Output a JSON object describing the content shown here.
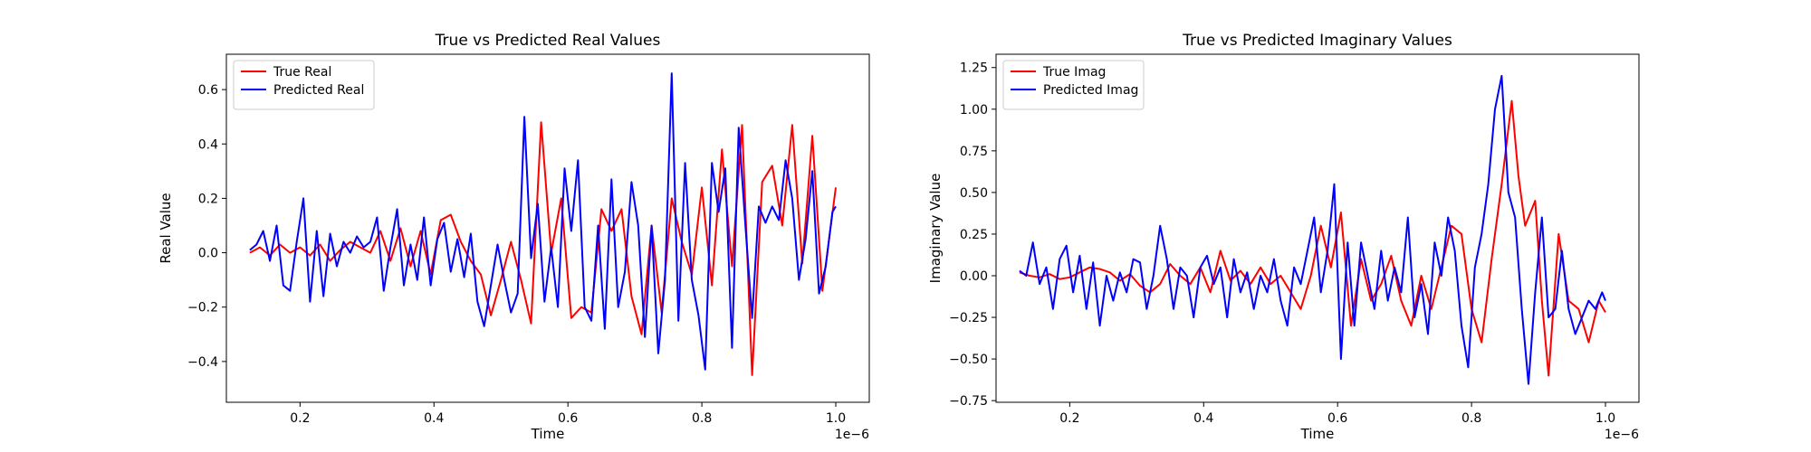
{
  "figure": {
    "background": "#ffffff"
  },
  "chart_data": [
    {
      "type": "line",
      "title": "True vs Predicted Real Values",
      "xlabel": "Time",
      "ylabel": "Real Value",
      "x_offset_label": "1e−6",
      "xlim": [
        0.09,
        1.05
      ],
      "ylim": [
        -0.55,
        0.73
      ],
      "grid": false,
      "legend_position": "top-left",
      "xticks": [
        0.2,
        0.4,
        0.6,
        0.8,
        1.0
      ],
      "xtick_labels": [
        "0.2",
        "0.4",
        "0.6",
        "0.8",
        "1.0"
      ],
      "yticks": [
        -0.4,
        -0.2,
        0.0,
        0.2,
        0.4,
        0.6
      ],
      "ytick_labels": [
        "−0.4",
        "−0.2",
        "0.0",
        "0.2",
        "0.4",
        "0.6"
      ],
      "series": [
        {
          "name": "True Real",
          "color": "#ff0000",
          "x": [
            0.125,
            0.14,
            0.155,
            0.17,
            0.185,
            0.2,
            0.215,
            0.23,
            0.245,
            0.26,
            0.275,
            0.29,
            0.305,
            0.32,
            0.335,
            0.35,
            0.365,
            0.38,
            0.395,
            0.41,
            0.425,
            0.44,
            0.455,
            0.47,
            0.485,
            0.5,
            0.515,
            0.53,
            0.545,
            0.56,
            0.575,
            0.59,
            0.605,
            0.62,
            0.635,
            0.65,
            0.665,
            0.68,
            0.695,
            0.71,
            0.725,
            0.74,
            0.755,
            0.77,
            0.785,
            0.8,
            0.815,
            0.83,
            0.845,
            0.86,
            0.875,
            0.89,
            0.905,
            0.92,
            0.935,
            0.95,
            0.965,
            0.98,
            1.0
          ],
          "y": [
            0.0,
            0.02,
            -0.01,
            0.03,
            0.0,
            0.02,
            -0.01,
            0.03,
            -0.03,
            0.01,
            0.04,
            0.02,
            0.0,
            0.08,
            -0.03,
            0.09,
            -0.05,
            0.08,
            -0.08,
            0.12,
            0.14,
            0.04,
            -0.03,
            -0.08,
            -0.23,
            -0.1,
            0.04,
            -0.1,
            -0.26,
            0.48,
            0.0,
            0.2,
            -0.24,
            -0.2,
            -0.22,
            0.16,
            0.08,
            0.16,
            -0.16,
            -0.3,
            0.1,
            -0.22,
            0.2,
            0.04,
            -0.08,
            0.24,
            -0.12,
            0.38,
            -0.05,
            0.47,
            -0.45,
            0.26,
            0.32,
            0.1,
            0.47,
            -0.04,
            0.43,
            -0.14,
            0.24
          ]
        },
        {
          "name": "Predicted Real",
          "color": "#0000ff",
          "x": [
            0.125,
            0.135,
            0.145,
            0.155,
            0.165,
            0.175,
            0.185,
            0.195,
            0.205,
            0.215,
            0.225,
            0.235,
            0.245,
            0.255,
            0.265,
            0.275,
            0.285,
            0.295,
            0.305,
            0.315,
            0.325,
            0.335,
            0.345,
            0.355,
            0.365,
            0.375,
            0.385,
            0.395,
            0.405,
            0.415,
            0.425,
            0.435,
            0.445,
            0.455,
            0.465,
            0.475,
            0.485,
            0.495,
            0.505,
            0.515,
            0.525,
            0.535,
            0.545,
            0.555,
            0.565,
            0.575,
            0.585,
            0.595,
            0.605,
            0.615,
            0.625,
            0.635,
            0.645,
            0.655,
            0.665,
            0.675,
            0.685,
            0.695,
            0.705,
            0.715,
            0.725,
            0.735,
            0.745,
            0.755,
            0.765,
            0.775,
            0.785,
            0.795,
            0.805,
            0.815,
            0.825,
            0.835,
            0.845,
            0.855,
            0.865,
            0.875,
            0.885,
            0.895,
            0.905,
            0.915,
            0.925,
            0.935,
            0.945,
            0.955,
            0.965,
            0.975,
            0.985,
            0.995,
            1.0
          ],
          "y": [
            0.01,
            0.03,
            0.08,
            -0.03,
            0.1,
            -0.12,
            -0.14,
            0.04,
            0.2,
            -0.18,
            0.08,
            -0.16,
            0.07,
            -0.05,
            0.04,
            0.0,
            0.06,
            0.02,
            0.04,
            0.13,
            -0.14,
            0.02,
            0.16,
            -0.12,
            0.03,
            -0.1,
            0.13,
            -0.12,
            0.05,
            0.11,
            -0.07,
            0.05,
            -0.09,
            0.07,
            -0.18,
            -0.27,
            -0.12,
            0.03,
            -0.1,
            -0.22,
            -0.15,
            0.5,
            -0.02,
            0.18,
            -0.18,
            0.02,
            -0.2,
            0.31,
            0.08,
            0.34,
            -0.2,
            -0.25,
            0.1,
            -0.28,
            0.27,
            -0.2,
            -0.07,
            0.26,
            0.1,
            -0.31,
            0.1,
            -0.37,
            -0.1,
            0.66,
            -0.25,
            0.33,
            -0.1,
            -0.23,
            -0.43,
            0.33,
            0.15,
            0.31,
            -0.35,
            0.46,
            0.1,
            -0.24,
            0.17,
            0.11,
            0.17,
            0.12,
            0.34,
            0.2,
            -0.1,
            0.05,
            0.3,
            -0.15,
            -0.05,
            0.15,
            0.17
          ]
        }
      ]
    },
    {
      "type": "line",
      "title": "True vs Predicted Imaginary Values",
      "xlabel": "Time",
      "ylabel": "Imaginary Value",
      "x_offset_label": "1e−6",
      "xlim": [
        0.09,
        1.05
      ],
      "ylim": [
        -0.76,
        1.33
      ],
      "grid": false,
      "legend_position": "top-left",
      "xticks": [
        0.2,
        0.4,
        0.6,
        0.8,
        1.0
      ],
      "xtick_labels": [
        "0.2",
        "0.4",
        "0.6",
        "0.8",
        "1.0"
      ],
      "yticks": [
        -0.75,
        -0.5,
        -0.25,
        0.0,
        0.25,
        0.5,
        0.75,
        1.0,
        1.25
      ],
      "ytick_labels": [
        "−0.75",
        "−0.50",
        "−0.25",
        "0.00",
        "0.25",
        "0.50",
        "0.75",
        "1.00",
        "1.25"
      ],
      "series": [
        {
          "name": "True Imag",
          "color": "#ff0000",
          "x": [
            0.125,
            0.14,
            0.155,
            0.17,
            0.185,
            0.2,
            0.215,
            0.23,
            0.245,
            0.26,
            0.275,
            0.29,
            0.305,
            0.32,
            0.335,
            0.35,
            0.365,
            0.38,
            0.395,
            0.41,
            0.425,
            0.44,
            0.455,
            0.47,
            0.485,
            0.5,
            0.515,
            0.53,
            0.545,
            0.56,
            0.575,
            0.59,
            0.605,
            0.62,
            0.635,
            0.65,
            0.665,
            0.68,
            0.695,
            0.71,
            0.725,
            0.74,
            0.755,
            0.77,
            0.785,
            0.8,
            0.815,
            0.83,
            0.845,
            0.86,
            0.87,
            0.88,
            0.895,
            0.905,
            0.915,
            0.93,
            0.945,
            0.96,
            0.975,
            0.99,
            1.0
          ],
          "y": [
            0.02,
            0.0,
            -0.01,
            0.01,
            -0.02,
            -0.01,
            0.02,
            0.05,
            0.04,
            0.02,
            -0.03,
            0.01,
            -0.06,
            -0.1,
            -0.05,
            0.07,
            0.0,
            -0.05,
            0.05,
            -0.1,
            0.15,
            -0.03,
            0.03,
            -0.05,
            0.05,
            -0.05,
            0.0,
            -0.1,
            -0.2,
            0.0,
            0.3,
            0.05,
            0.38,
            -0.3,
            0.1,
            -0.15,
            -0.05,
            0.12,
            -0.15,
            -0.3,
            0.0,
            -0.2,
            0.05,
            0.3,
            0.25,
            -0.2,
            -0.4,
            0.1,
            0.55,
            1.05,
            0.6,
            0.3,
            0.45,
            -0.15,
            -0.6,
            0.25,
            -0.15,
            -0.2,
            -0.4,
            -0.15,
            -0.22
          ]
        },
        {
          "name": "Predicted Imag",
          "color": "#0000ff",
          "x": [
            0.125,
            0.135,
            0.145,
            0.155,
            0.165,
            0.175,
            0.185,
            0.195,
            0.205,
            0.215,
            0.225,
            0.235,
            0.245,
            0.255,
            0.265,
            0.275,
            0.285,
            0.295,
            0.305,
            0.315,
            0.325,
            0.335,
            0.345,
            0.355,
            0.365,
            0.375,
            0.385,
            0.395,
            0.405,
            0.415,
            0.425,
            0.435,
            0.445,
            0.455,
            0.465,
            0.475,
            0.485,
            0.495,
            0.505,
            0.515,
            0.525,
            0.535,
            0.545,
            0.555,
            0.565,
            0.575,
            0.585,
            0.595,
            0.605,
            0.615,
            0.625,
            0.635,
            0.645,
            0.655,
            0.665,
            0.675,
            0.685,
            0.695,
            0.705,
            0.715,
            0.725,
            0.735,
            0.745,
            0.755,
            0.765,
            0.775,
            0.785,
            0.795,
            0.805,
            0.815,
            0.825,
            0.835,
            0.845,
            0.855,
            0.865,
            0.875,
            0.885,
            0.895,
            0.905,
            0.915,
            0.925,
            0.935,
            0.945,
            0.955,
            0.965,
            0.975,
            0.985,
            0.995,
            1.0
          ],
          "y": [
            0.03,
            0.0,
            0.2,
            -0.05,
            0.05,
            -0.2,
            0.1,
            0.18,
            -0.1,
            0.12,
            -0.2,
            0.08,
            -0.3,
            0.0,
            -0.15,
            0.02,
            -0.1,
            0.1,
            0.08,
            -0.2,
            0.0,
            0.3,
            0.1,
            -0.2,
            0.05,
            0.0,
            -0.25,
            0.05,
            0.12,
            -0.05,
            0.05,
            -0.25,
            0.1,
            -0.1,
            0.02,
            -0.2,
            0.0,
            -0.1,
            0.1,
            -0.15,
            -0.3,
            0.05,
            -0.05,
            0.15,
            0.35,
            -0.1,
            0.15,
            0.55,
            -0.5,
            0.2,
            -0.3,
            0.2,
            0.0,
            -0.2,
            0.15,
            -0.15,
            0.05,
            -0.1,
            0.35,
            -0.25,
            -0.05,
            -0.35,
            0.2,
            0.0,
            0.35,
            0.15,
            -0.3,
            -0.55,
            0.05,
            0.25,
            0.55,
            1.0,
            1.2,
            0.5,
            0.35,
            -0.2,
            -0.65,
            -0.1,
            0.35,
            -0.25,
            -0.2,
            0.15,
            -0.2,
            -0.35,
            -0.25,
            -0.15,
            -0.2,
            -0.1,
            -0.15
          ]
        }
      ]
    }
  ]
}
